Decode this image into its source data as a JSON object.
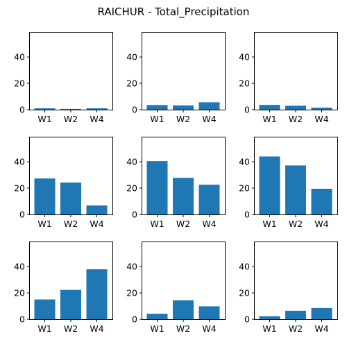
{
  "chart_data": {
    "type": "bar",
    "title": "RAICHUR - Total_Precipitation",
    "layout": "3x3 grid of subplots",
    "shared_y_axis": true,
    "ylim": [
      0,
      59
    ],
    "yticks": [
      0,
      20,
      40
    ],
    "categories": [
      "W1",
      "W2",
      "W4"
    ],
    "bar_color": "#1f77b4",
    "grid": false,
    "legend": "none",
    "subplots": [
      {
        "values": [
          1.0,
          0.6,
          1.0
        ]
      },
      {
        "values": [
          3.5,
          3.2,
          5.6
        ]
      },
      {
        "values": [
          3.6,
          3.0,
          1.5
        ]
      },
      {
        "values": [
          27.3,
          24.2,
          6.8
        ]
      },
      {
        "values": [
          40.5,
          27.8,
          22.6
        ]
      },
      {
        "values": [
          44.0,
          37.2,
          19.5
        ]
      },
      {
        "values": [
          15.0,
          22.3,
          37.9
        ]
      },
      {
        "values": [
          4.2,
          14.4,
          9.8
        ]
      },
      {
        "values": [
          2.3,
          6.4,
          8.5
        ]
      }
    ]
  }
}
